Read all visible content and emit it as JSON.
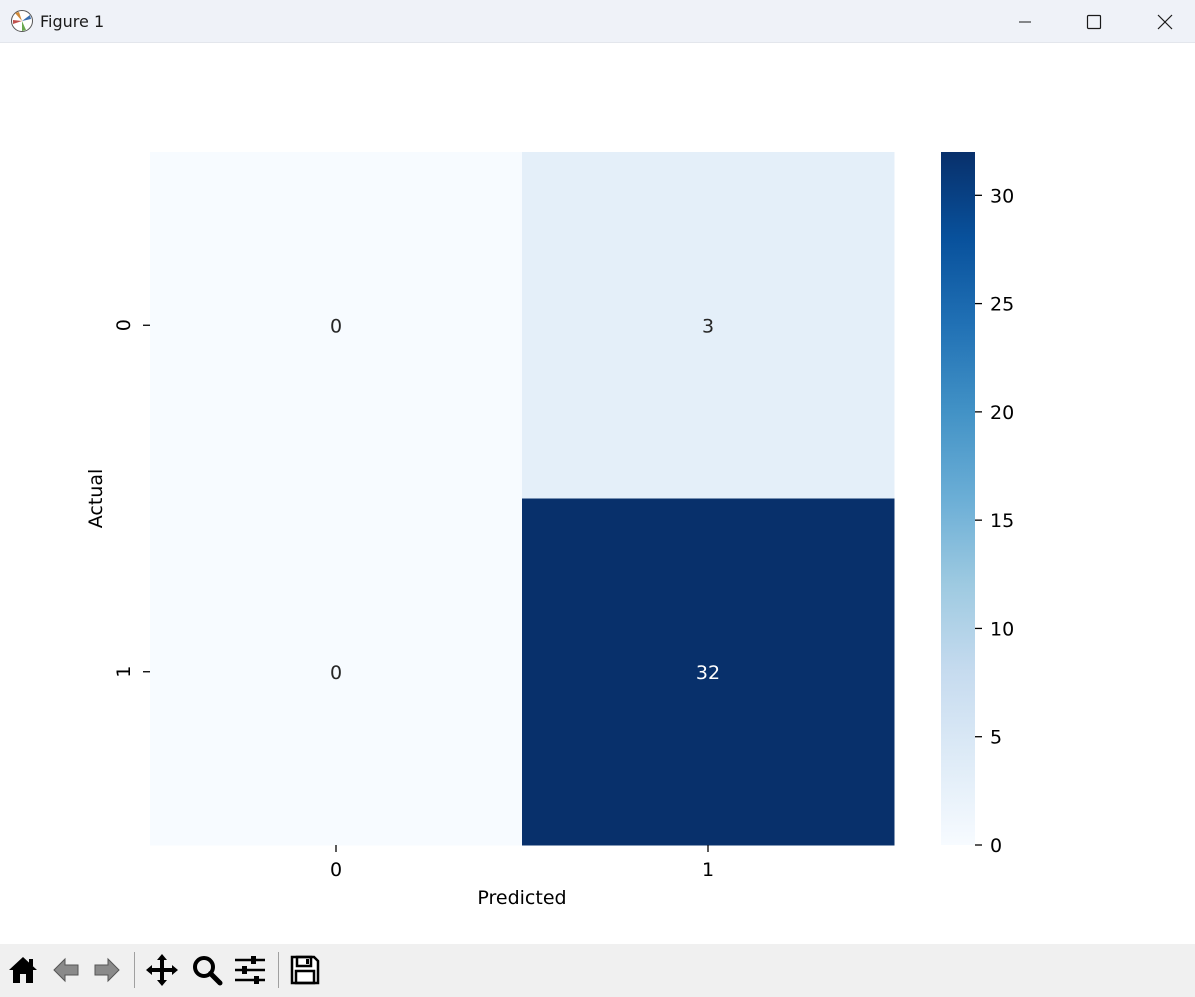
{
  "window": {
    "title": "Figure 1",
    "icons": [
      "matplotlib-icon",
      "minimize-icon",
      "maximize-icon",
      "close-icon"
    ]
  },
  "toolbar": {
    "buttons": [
      "home-icon",
      "back-icon",
      "forward-icon",
      "pan-icon",
      "zoom-icon",
      "configure-subplots-icon",
      "save-icon"
    ]
  },
  "chart_data": {
    "type": "heatmap",
    "title": "",
    "xlabel": "Predicted",
    "ylabel": "Actual",
    "x_categories": [
      "0",
      "1"
    ],
    "y_categories": [
      "0",
      "1"
    ],
    "values": [
      [
        0,
        3
      ],
      [
        0,
        32
      ]
    ],
    "annotations": [
      [
        "0",
        "3"
      ],
      [
        "0",
        "32"
      ]
    ],
    "colormap": "Blues",
    "colorbar": {
      "min": 0,
      "max": 32,
      "ticks": [
        0,
        5,
        10,
        15,
        20,
        25,
        30
      ],
      "tick_labels": [
        "0",
        "5",
        "10",
        "15",
        "20",
        "25",
        "30"
      ]
    },
    "colors": {
      "low": "#f7fbff",
      "high": "#08306b",
      "text_on_light": "#262626",
      "text_on_dark": "#ffffff"
    }
  }
}
